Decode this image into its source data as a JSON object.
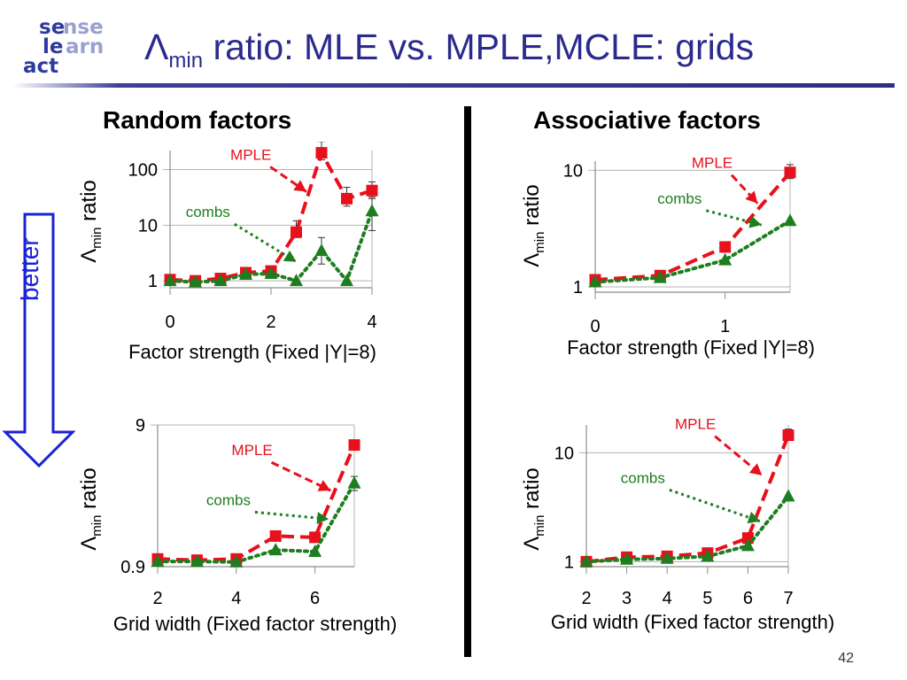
{
  "logo": {
    "line1a": "se",
    "line1b": "nse",
    "line2a": "le",
    "line2b": "arn",
    "line3": "act"
  },
  "title": {
    "lambda": "Λ",
    "sub": "min",
    "rest": " ratio: MLE vs. MPLE,MCLE: grids"
  },
  "columns": {
    "left": "Random factors",
    "right": "Associative factors"
  },
  "better": "better",
  "page_number": "42",
  "colors": {
    "mple": "#e8101c",
    "combs": "#1e7d1e",
    "title": "#2b2b8f",
    "arrow": "#1a22d6"
  },
  "chart_data": [
    {
      "id": "tl",
      "type": "line",
      "title": "Random factors",
      "xlabel": "Factor strength (Fixed |Y|=8)",
      "ylabel_lambda": "Λ",
      "ylabel_sub": "min",
      "ylabel_rest": " ratio",
      "scale": "log",
      "xlim": [
        0,
        4
      ],
      "ylim": [
        0.75,
        220
      ],
      "xticks": [
        0,
        2,
        4
      ],
      "xtick_labels": [
        "0",
        "2",
        "4"
      ],
      "yticks": [
        1,
        10,
        100
      ],
      "ytick_labels": [
        "1",
        "10",
        "100"
      ],
      "series": [
        {
          "name": "MPLE",
          "marker": "square",
          "x": [
            0,
            0.5,
            1,
            1.5,
            2,
            2.5,
            3,
            3.5,
            4
          ],
          "y": [
            1.05,
            1.0,
            1.1,
            1.4,
            1.5,
            7.5,
            200,
            30,
            42
          ],
          "err": [
            null,
            null,
            null,
            null,
            null,
            [
              6,
              12
            ],
            [
              150,
              320
            ],
            [
              22,
              48
            ],
            [
              32,
              60
            ]
          ]
        },
        {
          "name": "combs",
          "marker": "triangle",
          "x": [
            0,
            0.5,
            1,
            1.5,
            2,
            2.5,
            3,
            3.5,
            4
          ],
          "y": [
            1.0,
            0.95,
            1.0,
            1.3,
            1.35,
            1.0,
            3.5,
            1.0,
            18
          ],
          "err": [
            null,
            null,
            null,
            null,
            null,
            null,
            [
              2,
              6
            ],
            null,
            [
              8,
              30
            ]
          ]
        }
      ],
      "annotations": [
        {
          "text": "MPLE",
          "tx": 1.6,
          "ty": 150,
          "ax": 2.7,
          "ay": 40
        },
        {
          "text": "combs",
          "tx": 0.75,
          "ty": 14,
          "ax": 2.5,
          "ay": 2.2
        }
      ]
    },
    {
      "id": "tr",
      "type": "line",
      "title": "Associative factors",
      "xlabel": "Factor strength (Fixed |Y|=8)",
      "ylabel_lambda": "Λ",
      "ylabel_sub": "min",
      "ylabel_rest": " ratio",
      "scale": "log",
      "xlim": [
        0,
        1.5
      ],
      "ylim": [
        0.9,
        12
      ],
      "xticks": [
        0,
        1
      ],
      "xtick_labels": [
        "0",
        "1"
      ],
      "yticks": [
        1,
        10
      ],
      "ytick_labels": [
        "1",
        "10"
      ],
      "series": [
        {
          "name": "MPLE",
          "marker": "square",
          "x": [
            0,
            0.5,
            1,
            1.5
          ],
          "y": [
            1.15,
            1.25,
            2.2,
            9.6
          ],
          "err": [
            null,
            null,
            null,
            [
              8.5,
              11.2
            ]
          ]
        },
        {
          "name": "combs",
          "marker": "triangle",
          "x": [
            0,
            0.5,
            1,
            1.5
          ],
          "y": [
            1.1,
            1.2,
            1.7,
            3.7
          ],
          "err": [
            null,
            null,
            null,
            null
          ]
        }
      ],
      "annotations": [
        {
          "text": "MPLE",
          "tx": 0.9,
          "ty": 10.5,
          "ax": 1.25,
          "ay": 5.2
        },
        {
          "text": "combs",
          "tx": 0.65,
          "ty": 5.2,
          "ax": 1.28,
          "ay": 3.4
        }
      ]
    },
    {
      "id": "bl",
      "type": "line",
      "title": "Random factors",
      "xlabel": "Grid width (Fixed factor strength)",
      "ylabel_lambda": "Λ",
      "ylabel_sub": "min",
      "ylabel_rest": " ratio",
      "scale": "log",
      "xlim": [
        2,
        7
      ],
      "ylim": [
        0.9,
        9
      ],
      "xticks": [
        2,
        4,
        6
      ],
      "xtick_labels": [
        "2",
        "4",
        "6"
      ],
      "yticks": [
        0.9,
        9
      ],
      "ytick_labels": [
        "0.9",
        "9"
      ],
      "series": [
        {
          "name": "MPLE",
          "marker": "square",
          "x": [
            2,
            3,
            4,
            5,
            6,
            7
          ],
          "y": [
            1.02,
            1.0,
            1.02,
            1.48,
            1.45,
            6.5
          ],
          "err": [
            null,
            null,
            null,
            null,
            null,
            [
              6.0,
              7.0
            ]
          ]
        },
        {
          "name": "combs",
          "marker": "triangle",
          "x": [
            2,
            3,
            4,
            5,
            6,
            7
          ],
          "y": [
            0.98,
            0.98,
            0.97,
            1.18,
            1.15,
            3.5
          ],
          "err": [
            null,
            null,
            null,
            null,
            null,
            [
              3.1,
              3.9
            ]
          ]
        }
      ],
      "annotations": [
        {
          "text": "MPLE",
          "tx": 4.4,
          "ty": 5.5,
          "ax": 6.4,
          "ay": 3.1
        },
        {
          "text": "combs",
          "tx": 3.8,
          "ty": 2.45,
          "ax": 6.35,
          "ay": 1.95
        }
      ]
    },
    {
      "id": "br",
      "type": "line",
      "title": "Associative factors",
      "xlabel": "Grid width (Fixed factor strength)",
      "ylabel_lambda": "Λ",
      "ylabel_sub": "min",
      "ylabel_rest": " ratio",
      "scale": "log",
      "xlim": [
        2,
        7
      ],
      "ylim": [
        0.9,
        18
      ],
      "xticks": [
        2,
        3,
        4,
        5,
        6,
        7
      ],
      "xtick_labels": [
        "2",
        "3",
        "4",
        "5",
        "6",
        "7"
      ],
      "yticks": [
        1,
        10
      ],
      "ytick_labels": [
        "1",
        "10"
      ],
      "series": [
        {
          "name": "MPLE",
          "marker": "square",
          "x": [
            2,
            3,
            4,
            5,
            6,
            7
          ],
          "y": [
            1.0,
            1.1,
            1.12,
            1.2,
            1.65,
            14.5
          ],
          "err": [
            null,
            null,
            null,
            null,
            null,
            [
              13.5,
              16.5
            ]
          ]
        },
        {
          "name": "combs",
          "marker": "triangle",
          "x": [
            2,
            3,
            4,
            5,
            6,
            7
          ],
          "y": [
            1.0,
            1.05,
            1.07,
            1.12,
            1.4,
            4.0
          ],
          "err": [
            null,
            null,
            null,
            null,
            null,
            null
          ]
        }
      ],
      "annotations": [
        {
          "text": "MPLE",
          "tx": 4.7,
          "ty": 16.5,
          "ax": 6.35,
          "ay": 6.2
        },
        {
          "text": "combs",
          "tx": 3.4,
          "ty": 5.3,
          "ax": 6.3,
          "ay": 2.35
        }
      ]
    }
  ]
}
